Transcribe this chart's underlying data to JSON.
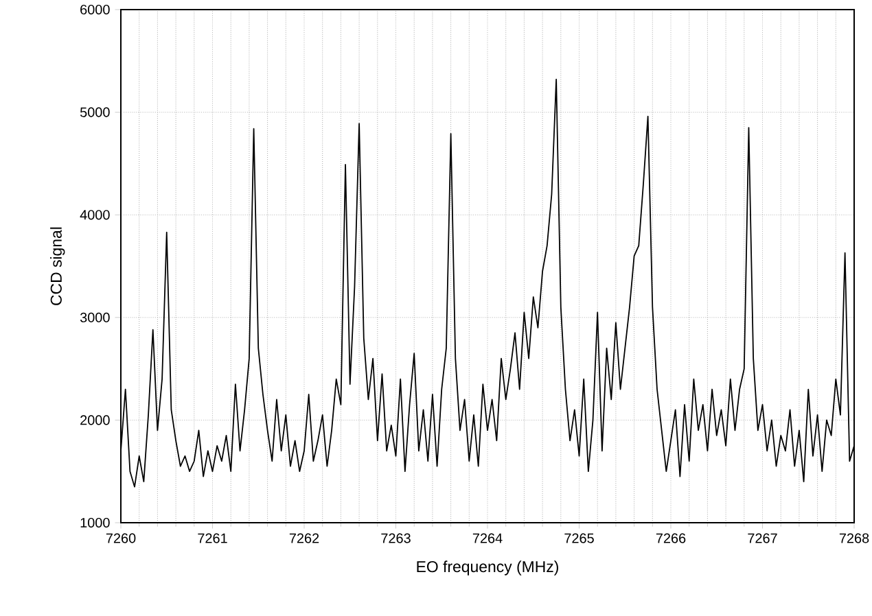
{
  "chart_data": {
    "type": "line",
    "xlabel": "EO frequency (MHz)",
    "ylabel": "CCD signal",
    "xlim": [
      7260,
      7268
    ],
    "ylim": [
      1000,
      6000
    ],
    "xticks": [
      7260,
      7261,
      7262,
      7263,
      7264,
      7265,
      7266,
      7267,
      7268
    ],
    "yticks": [
      1000,
      2000,
      3000,
      4000,
      5000,
      6000
    ],
    "grid": true,
    "marker": "none",
    "line_style": "solid",
    "series": [
      {
        "color": "#000000",
        "x": [
          7260.0,
          7260.05,
          7260.1,
          7260.15,
          7260.2,
          7260.25,
          7260.3,
          7260.35,
          7260.4,
          7260.45,
          7260.5,
          7260.55,
          7260.6,
          7260.65,
          7260.7,
          7260.75,
          7260.8,
          7260.85,
          7260.9,
          7260.95,
          7261.0,
          7261.05,
          7261.1,
          7261.15,
          7261.2,
          7261.25,
          7261.3,
          7261.35,
          7261.4,
          7261.45,
          7261.5,
          7261.55,
          7261.6,
          7261.65,
          7261.7,
          7261.75,
          7261.8,
          7261.85,
          7261.9,
          7261.95,
          7262.0,
          7262.05,
          7262.1,
          7262.15,
          7262.2,
          7262.25,
          7262.3,
          7262.35,
          7262.4,
          7262.45,
          7262.5,
          7262.55,
          7262.6,
          7262.65,
          7262.7,
          7262.75,
          7262.8,
          7262.85,
          7262.9,
          7262.95,
          7263.0,
          7263.05,
          7263.1,
          7263.15,
          7263.2,
          7263.25,
          7263.3,
          7263.35,
          7263.4,
          7263.45,
          7263.5,
          7263.55,
          7263.6,
          7263.65,
          7263.7,
          7263.75,
          7263.8,
          7263.85,
          7263.9,
          7263.95,
          7264.0,
          7264.05,
          7264.1,
          7264.15,
          7264.2,
          7264.25,
          7264.3,
          7264.35,
          7264.4,
          7264.45,
          7264.5,
          7264.55,
          7264.6,
          7264.65,
          7264.7,
          7264.75,
          7264.8,
          7264.85,
          7264.9,
          7264.95,
          7265.0,
          7265.05,
          7265.1,
          7265.15,
          7265.2,
          7265.25,
          7265.3,
          7265.35,
          7265.4,
          7265.45,
          7265.5,
          7265.55,
          7265.6,
          7265.65,
          7265.7,
          7265.75,
          7265.8,
          7265.85,
          7265.9,
          7265.95,
          7266.0,
          7266.05,
          7266.1,
          7266.15,
          7266.2,
          7266.25,
          7266.3,
          7266.35,
          7266.4,
          7266.45,
          7266.5,
          7266.55,
          7266.6,
          7266.65,
          7266.7,
          7266.75,
          7266.8,
          7266.85,
          7266.9,
          7266.95,
          7267.0,
          7267.05,
          7267.1,
          7267.15,
          7267.2,
          7267.25,
          7267.3,
          7267.35,
          7267.4,
          7267.45,
          7267.5,
          7267.55,
          7267.6,
          7267.65,
          7267.7,
          7267.75,
          7267.8,
          7267.85,
          7267.9,
          7267.95,
          7268.0
        ],
        "values": [
          1700,
          2300,
          1500,
          1350,
          1650,
          1400,
          2050,
          2880,
          1900,
          2400,
          3830,
          2100,
          1800,
          1550,
          1650,
          1500,
          1600,
          1900,
          1450,
          1700,
          1500,
          1750,
          1600,
          1850,
          1500,
          2350,
          1700,
          2100,
          2600,
          4840,
          2700,
          2250,
          1900,
          1600,
          2200,
          1700,
          2050,
          1550,
          1800,
          1500,
          1700,
          2250,
          1600,
          1800,
          2050,
          1550,
          1900,
          2400,
          2150,
          4490,
          2350,
          3300,
          4890,
          2800,
          2200,
          2600,
          1800,
          2450,
          1700,
          1950,
          1650,
          2400,
          1500,
          2150,
          2650,
          1700,
          2100,
          1600,
          2250,
          1550,
          2300,
          2700,
          4790,
          2600,
          1900,
          2200,
          1600,
          2050,
          1550,
          2350,
          1900,
          2200,
          1800,
          2600,
          2200,
          2500,
          2850,
          2300,
          3050,
          2600,
          3200,
          2900,
          3450,
          3700,
          4200,
          5320,
          3100,
          2300,
          1800,
          2100,
          1650,
          2400,
          1500,
          2000,
          3050,
          1700,
          2700,
          2200,
          2950,
          2300,
          2700,
          3100,
          3600,
          3700,
          4300,
          4960,
          3100,
          2300,
          1900,
          1500,
          1800,
          2100,
          1450,
          2150,
          1600,
          2400,
          1900,
          2150,
          1700,
          2300,
          1850,
          2100,
          1750,
          2400,
          1900,
          2300,
          2500,
          4850,
          2600,
          1900,
          2150,
          1700,
          2000,
          1550,
          1850,
          1700,
          2100,
          1550,
          1900,
          1400,
          2300,
          1650,
          2050,
          1500,
          2000,
          1850,
          2400,
          2050,
          3630,
          1600,
          1750
        ]
      }
    ]
  }
}
